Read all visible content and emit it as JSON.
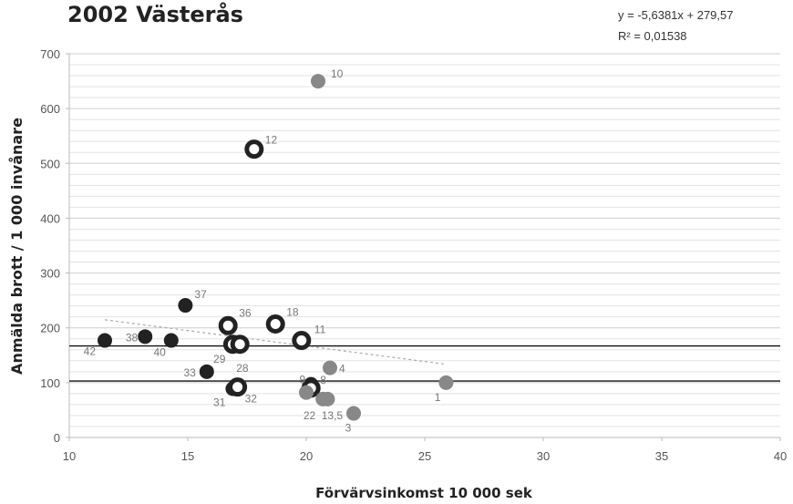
{
  "chart_data": {
    "type": "scatter",
    "title": "2002 Västerås",
    "xlabel": "Förvärvsinkomst 10 000 sek",
    "ylabel": "Anmälda brott / 1 000 invånare",
    "xlim": [
      10,
      40
    ],
    "ylim": [
      0,
      700
    ],
    "xticks": [
      "10",
      "15",
      "20",
      "25",
      "30",
      "35",
      "40"
    ],
    "yticks": [
      "0",
      "100",
      "200",
      "300",
      "400",
      "500",
      "600",
      "700"
    ],
    "grid": true,
    "trendline": {
      "equation": "y = -5,6381x + 279,57",
      "r_squared": "R² = 0,01538",
      "slope": -5.6381,
      "intercept": 279.57,
      "x_range": [
        11.5,
        25.9
      ]
    },
    "reference_lines": [
      {
        "y": 167
      },
      {
        "y": 103
      }
    ],
    "colors": {
      "dark": "#222222",
      "grey": "#888888",
      "ring": "#222222",
      "trend": "#aaaaaa",
      "reference": "#111111",
      "grid": "#e3e3e3",
      "grid_major": "#cfcfcf"
    },
    "points": [
      {
        "label": "10",
        "x": 20.5,
        "y": 650,
        "style": "grey"
      },
      {
        "label": "12",
        "x": 17.8,
        "y": 526,
        "style": "ring"
      },
      {
        "label": "37",
        "x": 14.9,
        "y": 241,
        "style": "dark"
      },
      {
        "label": "36",
        "x": 16.7,
        "y": 204,
        "style": "ring"
      },
      {
        "label": "18",
        "x": 18.7,
        "y": 207,
        "style": "ring"
      },
      {
        "label": "11",
        "x": 19.8,
        "y": 177,
        "style": "ring"
      },
      {
        "label": "42",
        "x": 11.5,
        "y": 177,
        "style": "dark"
      },
      {
        "label": "38",
        "x": 13.2,
        "y": 184,
        "style": "dark"
      },
      {
        "label": "40",
        "x": 14.3,
        "y": 177,
        "style": "dark"
      },
      {
        "label": "29",
        "x": 16.9,
        "y": 170,
        "style": "ring"
      },
      {
        "label": "28",
        "x": 17.2,
        "y": 170,
        "style": "ring"
      },
      {
        "label": "33",
        "x": 15.8,
        "y": 120,
        "style": "dark"
      },
      {
        "label": "4",
        "x": 21.0,
        "y": 127,
        "style": "grey"
      },
      {
        "label": "1",
        "x": 25.9,
        "y": 100,
        "style": "grey"
      },
      {
        "label": "9",
        "x": 20.2,
        "y": 97,
        "style": "dark"
      },
      {
        "label": "8",
        "x": 20.2,
        "y": 90,
        "style": "ring"
      },
      {
        "label": "",
        "x": 20.0,
        "y": 82,
        "style": "grey"
      },
      {
        "label": "31",
        "x": 16.9,
        "y": 89,
        "style": "dark"
      },
      {
        "label": "32",
        "x": 17.1,
        "y": 92,
        "style": "ring"
      },
      {
        "label": "22",
        "x": 20.7,
        "y": 70,
        "style": "grey"
      },
      {
        "label": "13,5",
        "x": 20.9,
        "y": 70,
        "style": "grey"
      },
      {
        "label": "3",
        "x": 22.0,
        "y": 44,
        "style": "grey"
      }
    ]
  }
}
